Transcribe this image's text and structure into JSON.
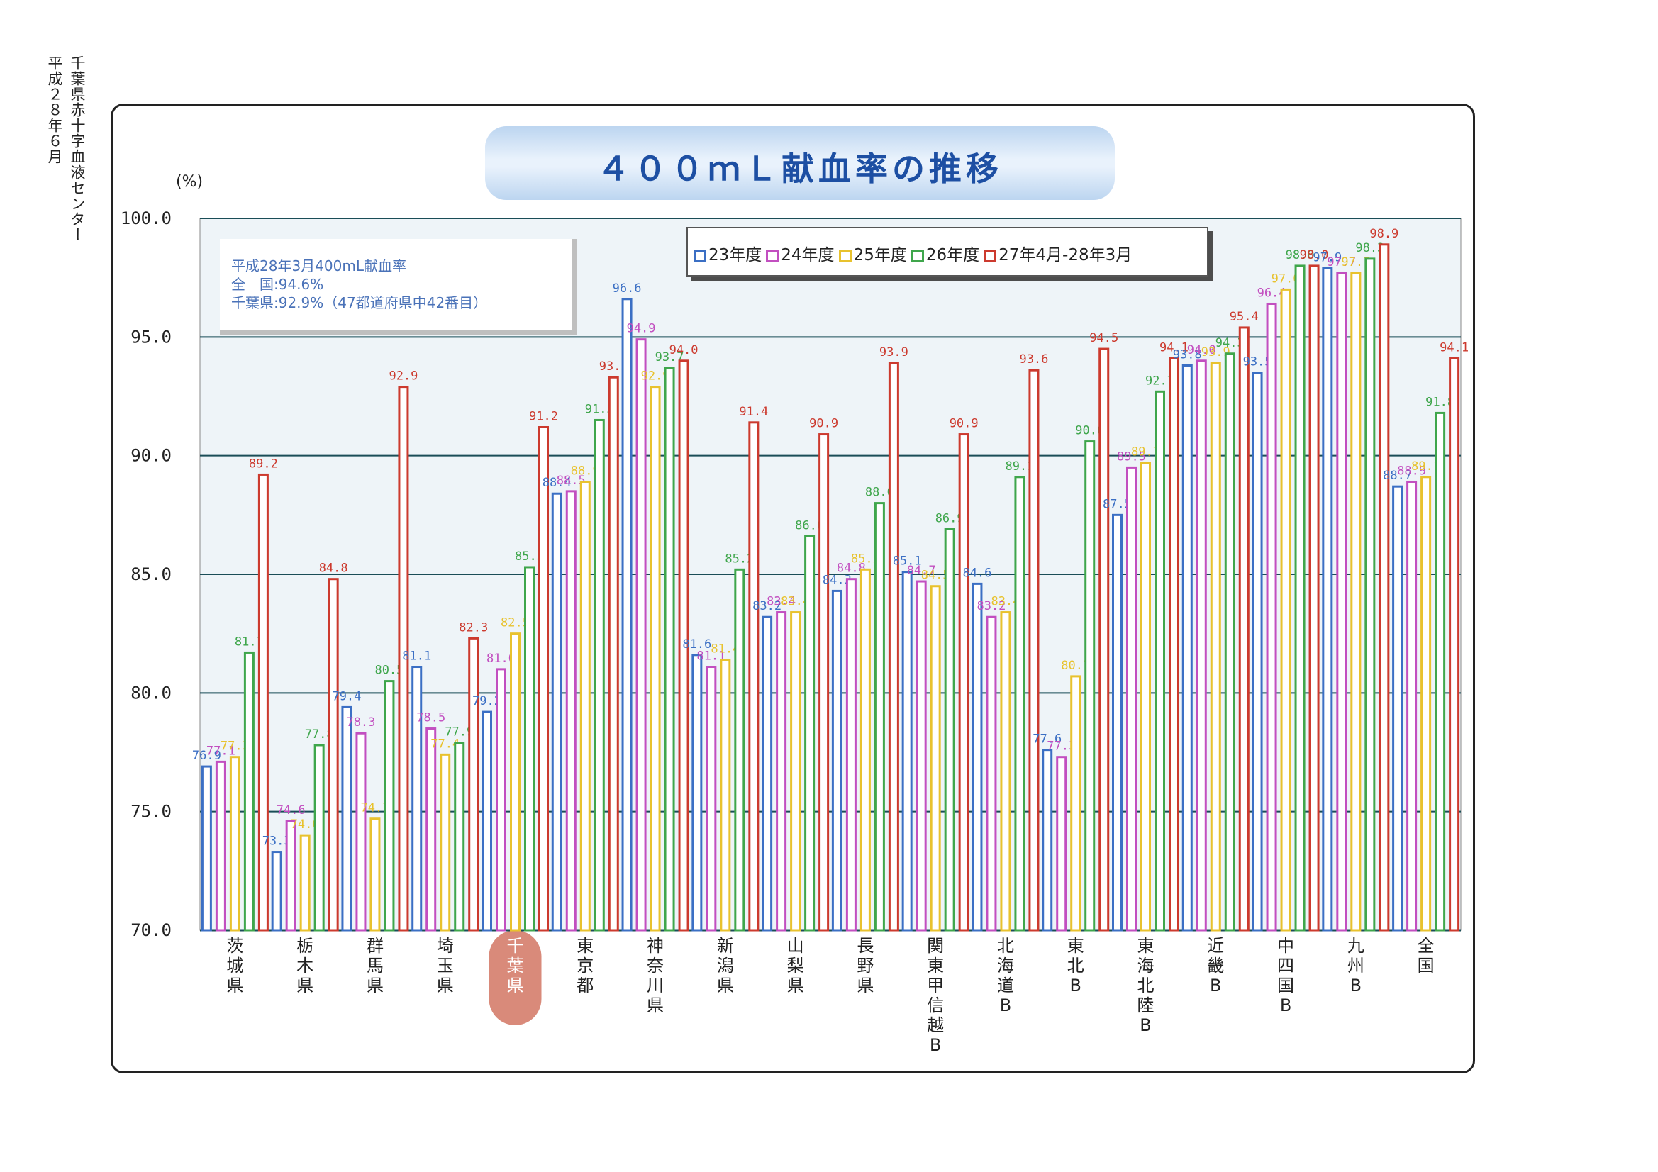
{
  "side_note": [
    "平成２８年６月",
    "千葉県赤十字血液センター"
  ],
  "colors": {
    "title_text": "#1d4fa3",
    "note_text": "#4a72b8",
    "chiba_highlight": "#d98a7a"
  },
  "note": {
    "line1": "平成28年3月400mL献血率",
    "line2": "全　国:94.6%",
    "line3": "千葉県:92.9%（47都道府県中42番目）"
  },
  "chart_data": {
    "type": "bar",
    "title": "４００ｍＬ献血率の推移",
    "ylabel": "(%)",
    "xlabel": "",
    "ylim": [
      70,
      100
    ],
    "yticks": [
      "70.0",
      "75.0",
      "80.0",
      "85.0",
      "90.0",
      "95.0",
      "100.0"
    ],
    "grid": true,
    "legend_position": "top-right",
    "categories": [
      "茨城県",
      "栃木県",
      "群馬県",
      "埼玉県",
      "千葉県",
      "東京都",
      "神奈川県",
      "新潟県",
      "山梨県",
      "長野県",
      "関東甲信越B",
      "北海道B",
      "東北B",
      "東海北陸B",
      "近畿B",
      "中四国B",
      "九州B",
      "全国"
    ],
    "highlight_category": "千葉県",
    "series": [
      {
        "name": "23年度",
        "color": "#3b6fc4",
        "values": [
          76.9,
          73.3,
          79.4,
          81.1,
          79.2,
          88.4,
          96.6,
          81.6,
          83.2,
          84.3,
          85.1,
          84.6,
          77.6,
          87.5,
          93.8,
          93.5,
          97.9,
          88.7
        ]
      },
      {
        "name": "24年度",
        "color": "#c24fc0",
        "values": [
          77.1,
          74.6,
          78.3,
          78.5,
          81.0,
          88.5,
          94.9,
          81.1,
          83.4,
          84.8,
          84.7,
          83.2,
          77.3,
          89.5,
          94.0,
          96.4,
          97.7,
          88.9
        ]
      },
      {
        "name": "25年度",
        "color": "#e8c22e",
        "values": [
          77.3,
          74.0,
          74.7,
          77.4,
          82.5,
          88.9,
          92.9,
          81.4,
          83.4,
          85.2,
          84.5,
          83.4,
          80.7,
          89.7,
          93.9,
          97.0,
          97.7,
          89.1
        ]
      },
      {
        "name": "26年度",
        "color": "#3fa64c",
        "values": [
          81.7,
          77.8,
          80.5,
          77.9,
          85.3,
          91.5,
          93.7,
          85.2,
          86.6,
          88.0,
          86.9,
          89.1,
          90.6,
          92.7,
          94.3,
          98.0,
          98.3,
          91.8
        ]
      },
      {
        "name": "27年4月-28年3月",
        "color": "#cc3a2e",
        "values": [
          89.2,
          84.8,
          92.9,
          82.3,
          91.2,
          93.3,
          94.0,
          91.4,
          90.9,
          93.9,
          90.9,
          93.6,
          94.5,
          94.1,
          95.4,
          98.0,
          98.9,
          94.1
        ]
      }
    ],
    "data_labels": [
      [
        "76.9",
        "77.1",
        "77.3",
        "81.7",
        "89.2"
      ],
      [
        "73.3",
        "74.6",
        "74.0",
        "77.8",
        "84.8"
      ],
      [
        "79.4",
        "78.3",
        "74.7",
        "80.5",
        "92.9"
      ],
      [
        "81.1",
        "78.5",
        "77.4",
        "77.9",
        "82.3"
      ],
      [
        "79.2",
        "81.0",
        "82.5",
        "85.3",
        "91.2"
      ],
      [
        "88.4",
        "88.5",
        "88.9",
        "91.5",
        "93.3"
      ],
      [
        "96.6",
        "94.9",
        "92.9",
        "93.7",
        "94.0"
      ],
      [
        "81.6",
        "81.1",
        "81.4",
        "85.2",
        "91.4"
      ],
      [
        "83.2",
        "83.4",
        "83.4",
        "86.6",
        "90.9"
      ],
      [
        "84.3",
        "84.8",
        "85.2",
        "88.0",
        "93.9"
      ],
      [
        "85.1",
        "84.7",
        "84.5",
        "86.9",
        "90.9"
      ],
      [
        "84.6",
        "83.2",
        "83.4",
        "89.1",
        "93.6"
      ],
      [
        "77.6",
        "77.3",
        "80.7",
        "90.6",
        "94.5"
      ],
      [
        "87.5",
        "89.5",
        "89.7",
        "92.7",
        "94.1"
      ],
      [
        "93.8",
        "94.0",
        "93.9",
        "94.3",
        "95.4"
      ],
      [
        "93.5",
        "96.4",
        "97.0",
        "98.0",
        "98.0"
      ],
      [
        "97.9",
        "97.7",
        "97.7",
        "98.3",
        "98.9"
      ],
      [
        "88.7",
        "88.9",
        "89.1",
        "91.8",
        "94.1"
      ]
    ]
  }
}
